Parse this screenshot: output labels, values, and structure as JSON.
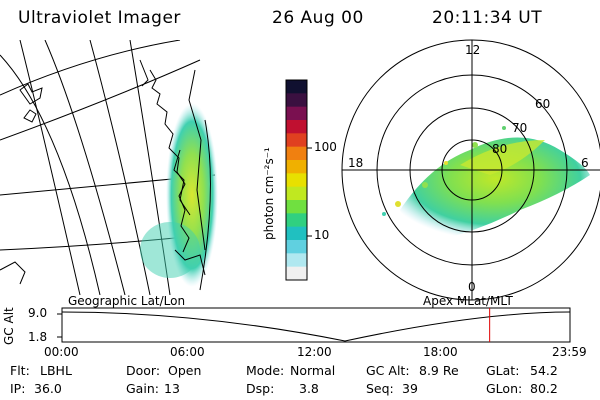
{
  "header": {
    "title": "Ultraviolet Imager",
    "date": "26 Aug 00",
    "time": "20:11:34 UT"
  },
  "colorbar": {
    "unit_label": "photon cm⁻²s⁻¹",
    "ticks": [
      "100",
      "10"
    ],
    "colors": [
      "#101030",
      "#3a1040",
      "#7a1050",
      "#c01030",
      "#e04020",
      "#f08010",
      "#f0b000",
      "#e8e000",
      "#c0e820",
      "#70e040",
      "#30d080",
      "#20c0c0",
      "#60d0e0",
      "#b0e8f0",
      "#f0f0f0"
    ]
  },
  "left_panel": {
    "caption": "Geographic Lat/Lon"
  },
  "polar_plot": {
    "caption": "Apex MLat/MLT",
    "mlt_labels": {
      "top": "12",
      "left": "18",
      "right": "6",
      "bottom": "0"
    },
    "lat_labels": [
      "60",
      "70",
      "80"
    ]
  },
  "altitude_strip": {
    "ylabel": "GC Alt",
    "yticks": [
      "9.0",
      "1.8"
    ],
    "xticks": [
      "00:00",
      "06:00",
      "12:00",
      "18:00",
      "23:59"
    ],
    "marker_hour": 20.19,
    "marker_color": "#e00000"
  },
  "info": {
    "row1": [
      {
        "label": "Flt:",
        "value": "LBHL"
      },
      {
        "label": "Door:",
        "value": "Open"
      },
      {
        "label": "Mode:",
        "value": "Normal"
      },
      {
        "label": "GC Alt:",
        "value": "8.9 Re"
      },
      {
        "label": "GLat:",
        "value": "54.2"
      }
    ],
    "row2": [
      {
        "label": "IP:",
        "value": "36.0"
      },
      {
        "label": "Gain:",
        "value": "13"
      },
      {
        "label": "Dsp:",
        "value": "3.8"
      },
      {
        "label": "Seq:",
        "value": "39"
      },
      {
        "label": "GLon:",
        "value": "80.2"
      }
    ]
  }
}
